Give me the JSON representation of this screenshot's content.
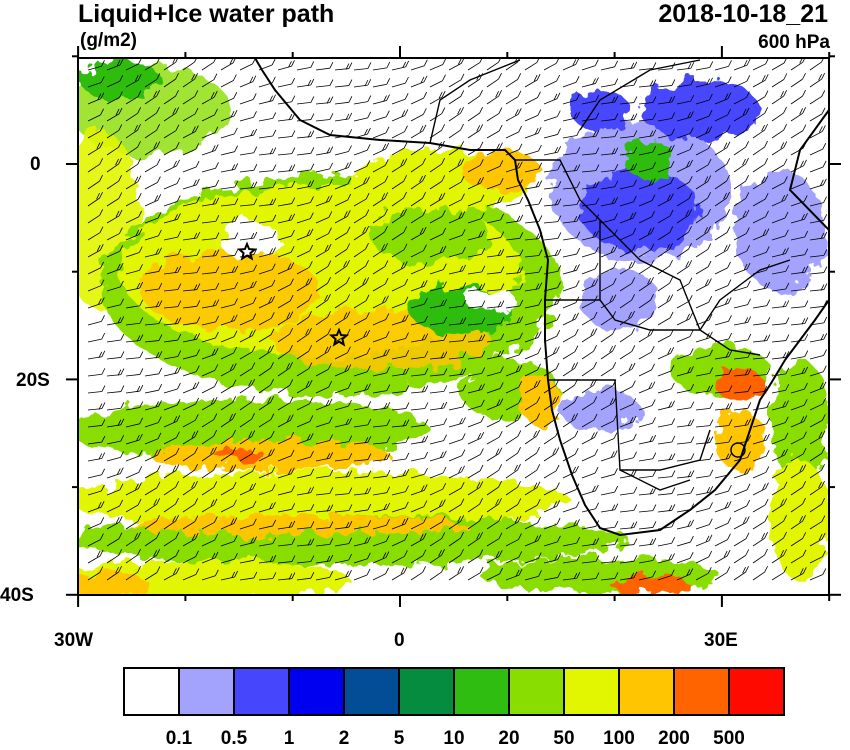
{
  "header": {
    "title": "Liquid+Ice water path",
    "units": "(g/m2)",
    "datetime": "2018-10-18_21",
    "level": "600 hPa"
  },
  "axes": {
    "x_ticks": [
      "30W",
      "0",
      "30E"
    ],
    "y_ticks": [
      "0",
      "20S",
      "40S"
    ]
  },
  "map": {
    "extent_lon": [
      -30,
      40
    ],
    "extent_lat": [
      -40,
      10
    ],
    "markers": [
      "star",
      "star"
    ],
    "overlay": "wind-barbs"
  },
  "colorbar": {
    "colors": [
      "#ffffff",
      "#a3a3fd",
      "#4646fd",
      "#0000f0",
      "#034c96",
      "#058c3e",
      "#2ebd10",
      "#89dd00",
      "#e1f600",
      "#ffc500",
      "#ff6400",
      "#ff0a00"
    ],
    "labels": [
      "0.1",
      "0.5",
      "1",
      "2",
      "5",
      "10",
      "20",
      "50",
      "100",
      "200",
      "500"
    ]
  }
}
